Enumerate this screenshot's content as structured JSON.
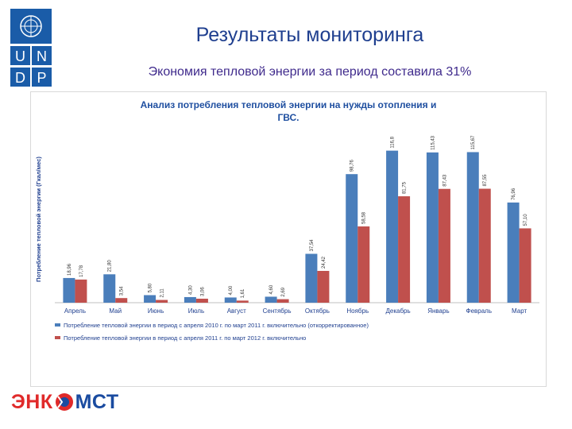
{
  "header": {
    "title": "Результаты мониторинга",
    "subtitle": "Экономия тепловой энергии за период составила 31%"
  },
  "logos": {
    "undp_letters": [
      "U",
      "N",
      "D",
      "P"
    ],
    "undp_color": "#1a5ca8",
    "footer_logo": {
      "part1": "ЭНК",
      "part2": "МСТ"
    }
  },
  "chart_data": {
    "type": "bar",
    "title_lines": [
      "Анализ потребления тепловой энергии на нужды отопления и",
      "ГВС."
    ],
    "ylabel": "Потребление тепловой энергии (Гкал/мес)",
    "xlabel": "",
    "categories": [
      "Апрель",
      "Май",
      "Июнь",
      "Июль",
      "Август",
      "Сентябрь",
      "Октябрь",
      "Ноябрь",
      "Декабрь",
      "Январь",
      "Февраль",
      "Март"
    ],
    "ylim": [
      0,
      130
    ],
    "grid": false,
    "legend_position": "bottom",
    "series": [
      {
        "name": "Потребление тепловой энергии в период с апреля 2010 г. по март 2011 г. включительно (откорректированное)",
        "color": "#4a7ebb",
        "values": [
          18.96,
          21.8,
          5.8,
          4.3,
          4.0,
          4.6,
          37.54,
          98.76,
          116.8,
          115.43,
          115.67,
          76.96
        ],
        "labels": [
          "18,96",
          "21,80",
          "5,80",
          "4,30",
          "4,00",
          "4,60",
          "37,54",
          "98,76",
          "116,8",
          "115,43",
          "115,67",
          "76,96"
        ]
      },
      {
        "name": "Потребление тепловой энергии в период с апреля 2011 г. по март 2012 г. включительно",
        "color": "#c0504d",
        "values": [
          17.78,
          3.54,
          2.11,
          3.06,
          1.61,
          2.69,
          24.42,
          58.58,
          81.75,
          87.43,
          87.55,
          57.1
        ],
        "labels": [
          "17,78",
          "3,54",
          "2,11",
          "3,06",
          "1,61",
          "2,69",
          "24,42",
          "58,58",
          "81,75",
          "87,43",
          "87,55",
          "57,10"
        ]
      }
    ]
  }
}
